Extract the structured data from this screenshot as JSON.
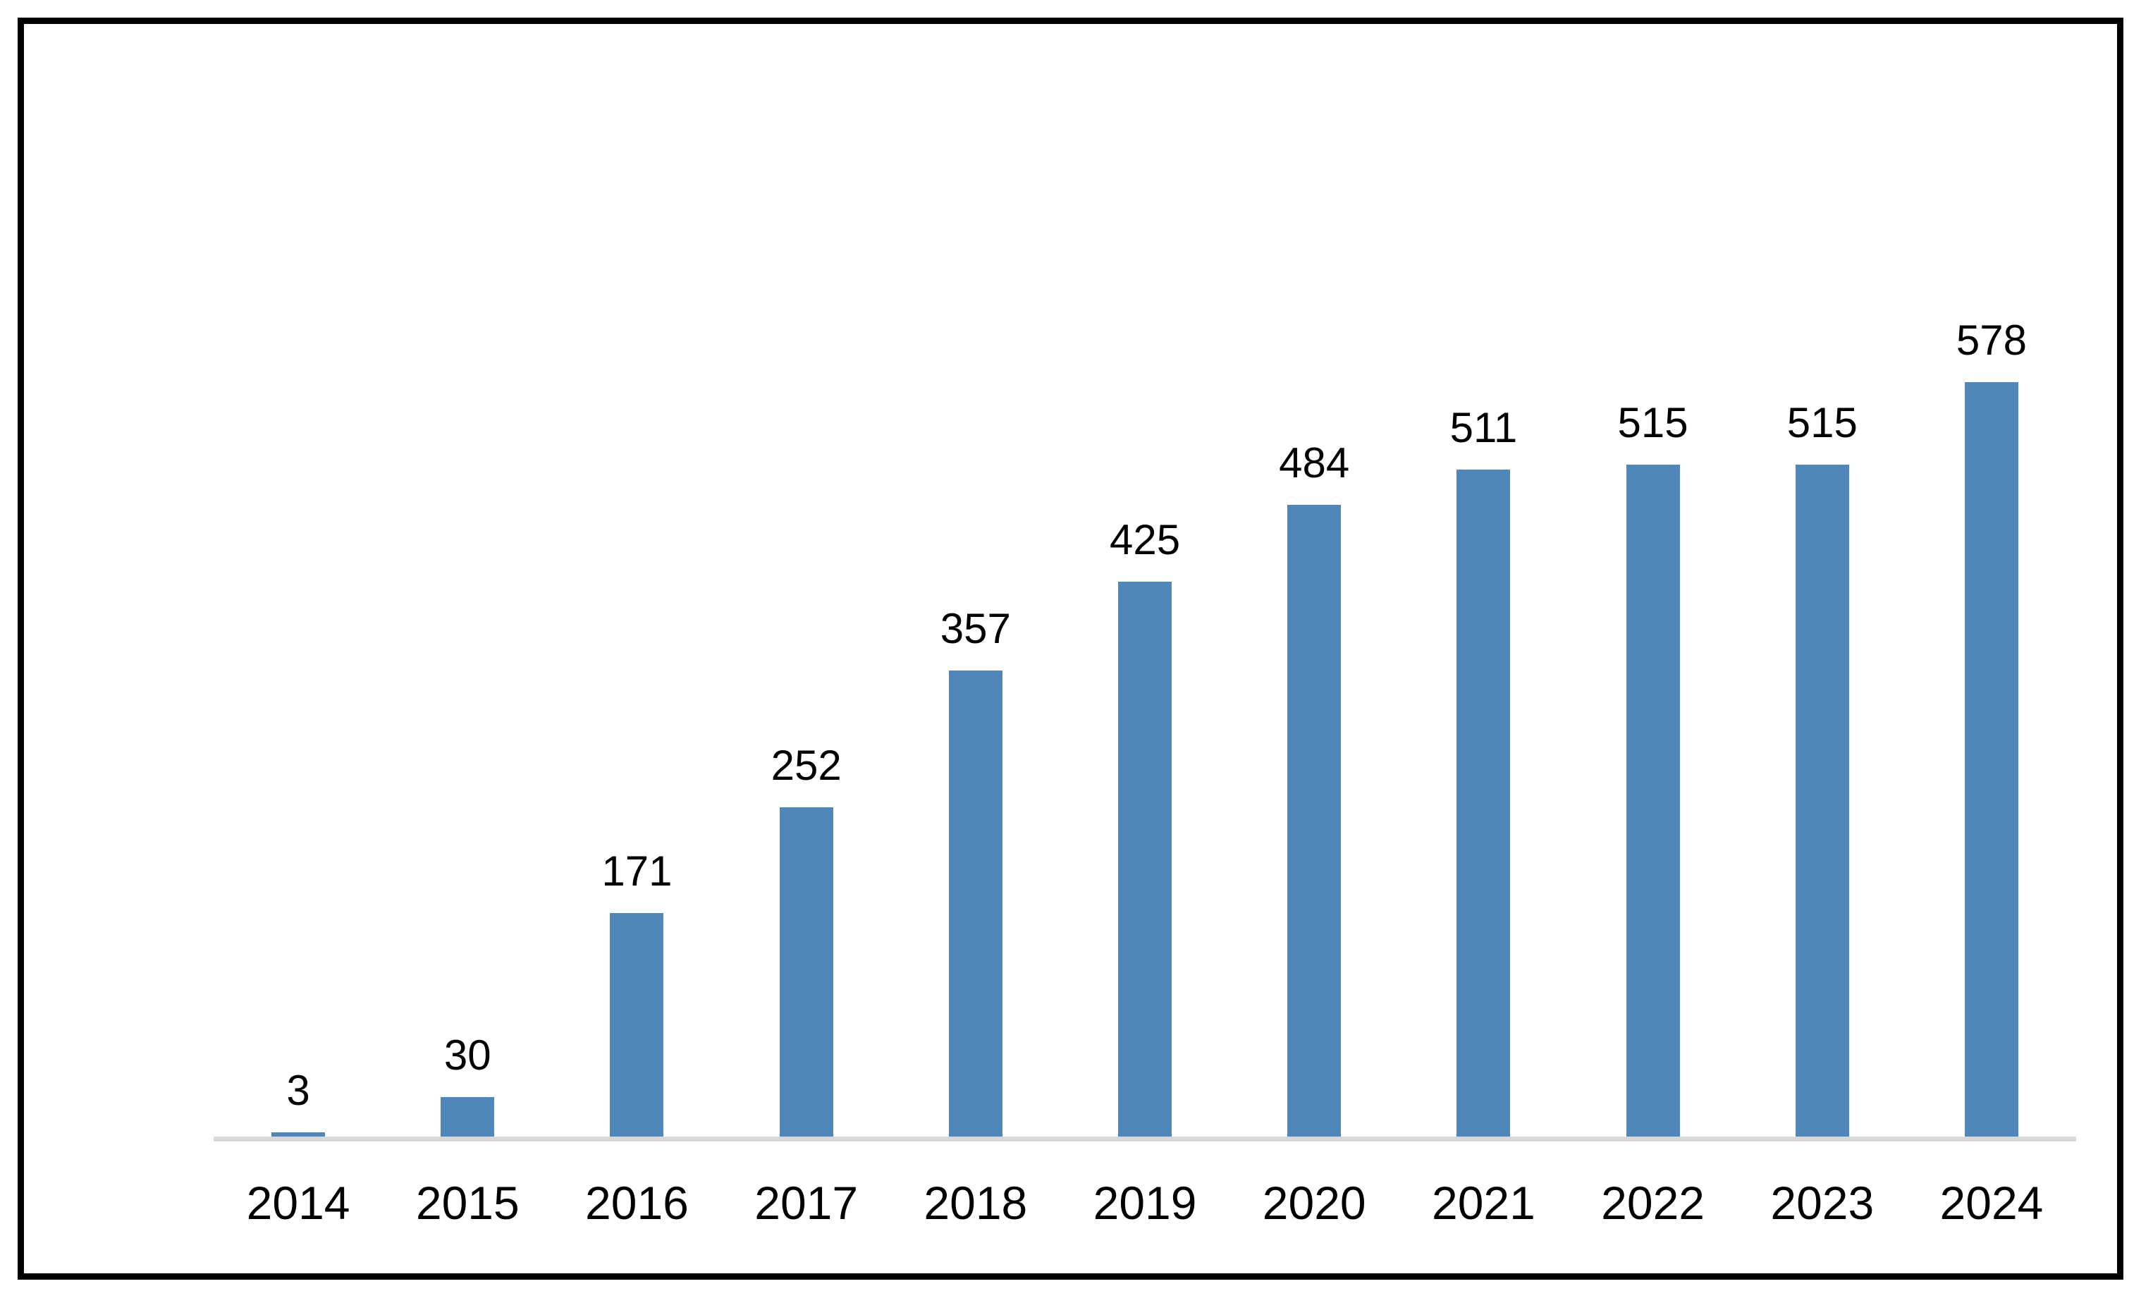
{
  "chart_data": {
    "type": "bar",
    "categories": [
      "2014",
      "2015",
      "2016",
      "2017",
      "2018",
      "2019",
      "2020",
      "2021",
      "2022",
      "2023",
      "2024"
    ],
    "values": [
      3,
      30,
      171,
      252,
      357,
      425,
      484,
      511,
      515,
      515,
      578
    ],
    "title": "",
    "xlabel": "",
    "ylabel": "",
    "ylim": [
      0,
      600
    ],
    "grid": false,
    "legend_position": "none",
    "data_labels_visible": true,
    "colors": {
      "bar": "#4f87bb",
      "axis_line": "#d9d9d9",
      "label_text": "#000000",
      "frame_border": "#000000",
      "background": "#ffffff"
    }
  }
}
